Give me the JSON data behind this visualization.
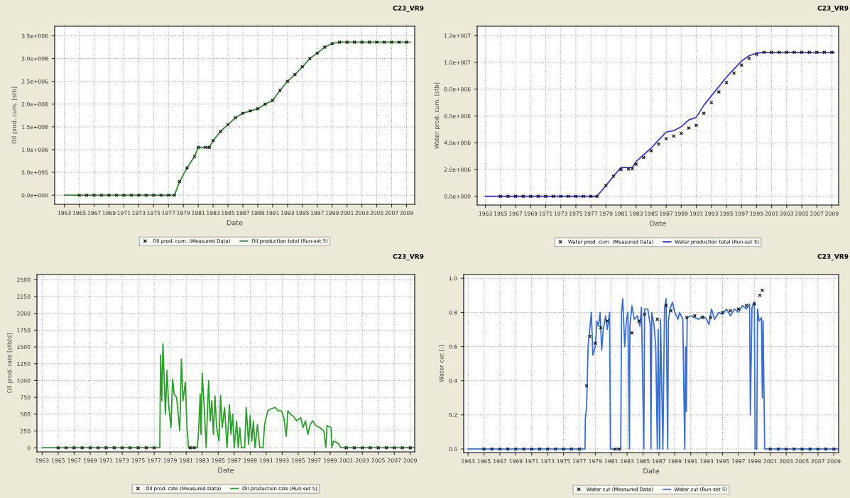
{
  "chart_data": [
    {
      "type": "line",
      "title": "C23_VR9",
      "xlabel": "Date",
      "ylabel": "Oil prod. cum. [stb]",
      "xlim": [
        1961.7,
        2010.1
      ],
      "xticks": [
        1963,
        1965,
        1967,
        1969,
        1971,
        1973,
        1975,
        1977,
        1979,
        1981,
        1983,
        1985,
        1987,
        1989,
        1991,
        1993,
        1995,
        1997,
        1999,
        2001,
        2003,
        2005,
        2007,
        2009
      ],
      "ylim": [
        -200000,
        3710000
      ],
      "yticks": [
        {
          "value": 0,
          "label": "0.0e+000"
        },
        {
          "value": 500000,
          "label": "5.0e+005"
        },
        {
          "value": 1000000,
          "label": "1.0e+006"
        },
        {
          "value": 1500000,
          "label": "1.5e+006"
        },
        {
          "value": 2000000,
          "label": "2.0e+006"
        },
        {
          "value": 2500000,
          "label": "2.5e+006"
        },
        {
          "value": 3000000,
          "label": "3.0e+006"
        },
        {
          "value": 3500000,
          "label": "3.5e+006"
        }
      ],
      "grid": true,
      "legend": "bottom",
      "series": [
        {
          "name": "Oil prod. cum. (Measured Data)",
          "type": "scatter",
          "marker": "cross",
          "color": "#1a1a1a",
          "x": [
            1965,
            1966,
            1967,
            1968,
            1969,
            1970,
            1971,
            1972,
            1973,
            1974,
            1975,
            1976,
            1977,
            1977.8,
            1978.5,
            1979.5,
            1980.5,
            1981,
            1982,
            1982.5,
            1983,
            1984,
            1985,
            1986,
            1987,
            1988,
            1989,
            1990,
            1991,
            1992,
            1993,
            1994,
            1995,
            1996,
            1997,
            1998,
            1999,
            2000,
            2001,
            2002,
            2003,
            2004,
            2005,
            2006,
            2007,
            2008,
            2009
          ],
          "values": [
            0,
            0,
            0,
            0,
            0,
            0,
            0,
            0,
            0,
            0,
            0,
            0,
            0,
            0,
            300000,
            600000,
            850000,
            1050000,
            1050000,
            1050000,
            1200000,
            1400000,
            1550000,
            1700000,
            1800000,
            1850000,
            1900000,
            2000000,
            2080000,
            2300000,
            2500000,
            2650000,
            2820000,
            3000000,
            3120000,
            3250000,
            3330000,
            3360000,
            3360000,
            3360000,
            3360000,
            3360000,
            3360000,
            3360000,
            3360000,
            3360000,
            3360000
          ]
        },
        {
          "name": "Oil production total (Run-set 5)",
          "marker": "none",
          "color": "#2e8b2e",
          "x": [
            1963,
            1977.8,
            1978.5,
            1979.5,
            1980.5,
            1981,
            1982.5,
            1983,
            1984,
            1985,
            1986,
            1987,
            1988,
            1989,
            1990,
            1991,
            1992,
            1993,
            1994,
            1995,
            1996,
            1997,
            1998,
            1999,
            2000,
            2009.5
          ],
          "values": [
            0,
            0,
            300000,
            600000,
            850000,
            1050000,
            1050000,
            1200000,
            1400000,
            1550000,
            1700000,
            1800000,
            1850000,
            1900000,
            2000000,
            2080000,
            2300000,
            2500000,
            2650000,
            2820000,
            3000000,
            3120000,
            3250000,
            3330000,
            3360000,
            3360000
          ]
        }
      ]
    },
    {
      "type": "line",
      "title": "C23_VR9",
      "xlabel": "Date",
      "ylabel": "Water prod. cum. [stb]",
      "xlim": [
        1961.9,
        2009.9
      ],
      "xticks": [
        1963,
        1965,
        1967,
        1969,
        1971,
        1973,
        1975,
        1977,
        1979,
        1981,
        1983,
        1985,
        1987,
        1989,
        1991,
        1993,
        1995,
        1997,
        1999,
        2001,
        2003,
        2005,
        2007,
        2009
      ],
      "ylim": [
        -650000,
        12700000
      ],
      "yticks": [
        {
          "value": 0,
          "label": "0.0e+000"
        },
        {
          "value": 2000000,
          "label": "2.0e+006"
        },
        {
          "value": 4000000,
          "label": "4.0e+006"
        },
        {
          "value": 6000000,
          "label": "6.0e+006"
        },
        {
          "value": 8000000,
          "label": "8.0e+006"
        },
        {
          "value": 10000000,
          "label": "1.0e+007"
        },
        {
          "value": 12000000,
          "label": "1.2e+007"
        }
      ],
      "grid": true,
      "legend": "bottom",
      "series": [
        {
          "name": "Water prod. cum. (Measured Data)",
          "type": "scatter",
          "marker": "cross",
          "color": "#1a1a1a",
          "x": [
            1965,
            1966,
            1967,
            1968,
            1969,
            1970,
            1971,
            1972,
            1973,
            1974,
            1975,
            1976,
            1977,
            1977.8,
            1979,
            1980,
            1981,
            1982,
            1982.5,
            1983,
            1984,
            1985,
            1986,
            1987,
            1988,
            1989,
            1990,
            1991,
            1992,
            1993,
            1994,
            1995,
            1996,
            1997,
            1998,
            1999,
            2000,
            2001,
            2002,
            2003,
            2004,
            2005,
            2006,
            2007,
            2008,
            2009
          ],
          "values": [
            0,
            0,
            0,
            0,
            0,
            0,
            0,
            0,
            0,
            0,
            0,
            0,
            0,
            0,
            800000,
            1500000,
            2000000,
            2030000,
            2050000,
            2400000,
            2900000,
            3400000,
            3900000,
            4300000,
            4500000,
            4700000,
            5100000,
            5300000,
            6200000,
            7000000,
            7800000,
            8500000,
            9200000,
            9800000,
            10300000,
            10600000,
            10750000,
            10750000,
            10750000,
            10750000,
            10750000,
            10750000,
            10750000,
            10750000,
            10750000,
            10750000
          ]
        },
        {
          "name": "Water production total (Run-set 5)",
          "marker": "none",
          "color": "#3a3acc",
          "x": [
            1963,
            1977.8,
            1979,
            1980,
            1981,
            1982.5,
            1983,
            1984,
            1985,
            1986,
            1987,
            1988,
            1989,
            1990,
            1991,
            1992,
            1993,
            1994,
            1995,
            1996,
            1997,
            1998,
            1999,
            2000,
            2009.3
          ],
          "values": [
            0,
            0,
            800000,
            1500000,
            2150000,
            2150000,
            2600000,
            3100000,
            3600000,
            4200000,
            4800000,
            4900000,
            5200000,
            5700000,
            5900000,
            6800000,
            7500000,
            8200000,
            8900000,
            9500000,
            10100000,
            10500000,
            10700000,
            10750000,
            10750000
          ]
        }
      ]
    },
    {
      "type": "line",
      "title": "C23_VR9",
      "xlabel": "Date",
      "ylabel": "Oil prod. rate [stb/d]",
      "xlim": [
        1962.35,
        2009.55
      ],
      "xticks": [
        1963,
        1965,
        1967,
        1969,
        1971,
        1973,
        1975,
        1977,
        1979,
        1981,
        1983,
        1985,
        1987,
        1989,
        1991,
        1993,
        1995,
        1997,
        1999,
        2001,
        2003,
        2005,
        2007,
        2009
      ],
      "ylim": [
        -61,
        2577
      ],
      "yticks": [
        0,
        250,
        500,
        750,
        1000,
        1250,
        1500,
        1750,
        2000,
        2250,
        2500
      ],
      "grid": true,
      "legend": "bottom",
      "series": [
        {
          "name": "Oil prod. rate (Measured Data)",
          "type": "scatter",
          "marker": "cross",
          "color": "#1a1a1a",
          "x": [
            1965,
            1966,
            1967,
            1968,
            1969,
            1970,
            1971,
            1972,
            1973,
            1974,
            1975,
            1976,
            1977,
            1981.5,
            1982,
            2001,
            2002,
            2003,
            2004,
            2005,
            2006,
            2007,
            2008,
            2009
          ],
          "values": [
            0,
            0,
            0,
            0,
            0,
            0,
            0,
            0,
            0,
            0,
            0,
            0,
            0,
            0,
            0,
            0,
            0,
            0,
            0,
            0,
            0,
            0,
            0,
            0
          ]
        },
        {
          "name": "Oil production rate (Run-set 5)",
          "marker": "none",
          "color": "#2aa02a",
          "x": [
            1963,
            1977.7,
            1977.8,
            1977.95,
            1978.1,
            1978.4,
            1978.6,
            1978.8,
            1979.1,
            1979.3,
            1979.5,
            1979.8,
            1980.2,
            1980.4,
            1980.6,
            1980.9,
            1981.1,
            1981.3,
            1982.4,
            1982.55,
            1982.75,
            1982.85,
            1983.0,
            1983.25,
            1983.5,
            1983.8,
            1984.0,
            1984.2,
            1984.4,
            1984.6,
            1984.8,
            1985.1,
            1985.3,
            1985.5,
            1985.8,
            1986.1,
            1986.4,
            1986.6,
            1986.8,
            1987.0,
            1987.3,
            1987.5,
            1987.7,
            1987.9,
            1988.3,
            1988.5,
            1988.8,
            1989.0,
            1989.2,
            1989.4,
            1989.6,
            1989.9,
            1990.2,
            1990.6,
            1990.8,
            1991.2,
            1991.6,
            1992.1,
            1992.5,
            1992.9,
            1993.2,
            1993.5,
            1993.7,
            1994.0,
            1994.4,
            1994.8,
            1995.3,
            1995.6,
            1995.9,
            1996.2,
            1996.5,
            1996.8,
            1997.2,
            1997.7,
            1998.2,
            1998.45,
            1998.6,
            1999.1,
            1999.2,
            1999.4,
            1999.8,
            2000.1,
            2000.3,
            2009.5
          ],
          "values": [
            0,
            0,
            1380,
            700,
            1550,
            500,
            1150,
            650,
            300,
            1020,
            800,
            750,
            250,
            1320,
            700,
            980,
            300,
            0,
            0,
            250,
            800,
            200,
            1110,
            600,
            0,
            1000,
            400,
            700,
            200,
            770,
            300,
            100,
            780,
            300,
            600,
            0,
            640,
            200,
            500,
            0,
            400,
            0,
            300,
            0,
            0,
            600,
            50,
            480,
            100,
            400,
            0,
            350,
            0,
            0,
            350,
            550,
            580,
            600,
            550,
            550,
            450,
            170,
            550,
            500,
            470,
            400,
            450,
            300,
            400,
            200,
            350,
            400,
            330,
            300,
            250,
            0,
            330,
            300,
            0,
            100,
            80,
            50,
            0,
            0
          ]
        }
      ]
    },
    {
      "type": "line",
      "title": "C23_VR9",
      "xlabel": "Date",
      "ylabel": "Water cut [-]",
      "xlim": [
        1962.45,
        2009.6
      ],
      "xticks": [
        1963,
        1965,
        1967,
        1969,
        1971,
        1973,
        1975,
        1977,
        1979,
        1981,
        1983,
        1985,
        1987,
        1989,
        1991,
        1993,
        1995,
        1997,
        1999,
        2001,
        2003,
        2005,
        2007,
        2009
      ],
      "ylim": [
        -0.021,
        1.022
      ],
      "yticks": [
        {
          "value": 0,
          "label": "0.0"
        },
        {
          "value": 0.2,
          "label": "0.2"
        },
        {
          "value": 0.4,
          "label": "0.4"
        },
        {
          "value": 0.6,
          "label": "0.6"
        },
        {
          "value": 0.8,
          "label": "0.8"
        },
        {
          "value": 1,
          "label": "1.0"
        }
      ],
      "grid": true,
      "legend": "bottom",
      "series": [
        {
          "name": "Water cut (Measured Data)",
          "type": "scatter",
          "marker": "cross",
          "color": "#1a1a1a",
          "x": [
            1965,
            1966,
            1967,
            1968,
            1969,
            1970,
            1971,
            1972,
            1973,
            1974,
            1975,
            1976,
            1977,
            1977.9,
            1978.3,
            1979,
            1979.7,
            1980.5,
            1981.5,
            1982,
            1983.6,
            1984.5,
            1985.2,
            1986.8,
            1987.9,
            1988.5,
            1990.5,
            1991.5,
            1992.5,
            1993.5,
            1995,
            1996,
            1997,
            1998,
            1999,
            1999.7,
            2000.0,
            2001,
            2002,
            2003,
            2004,
            2005,
            2006,
            2007,
            2008,
            2009
          ],
          "values": [
            0,
            0,
            0,
            0,
            0,
            0,
            0,
            0,
            0,
            0,
            0,
            0,
            0,
            0.37,
            0.66,
            0.62,
            0.71,
            0.75,
            0,
            0,
            0.68,
            0.75,
            0.79,
            0.76,
            0.84,
            0.81,
            0.77,
            0.78,
            0.77,
            0.77,
            0.8,
            0.81,
            0.82,
            0.84,
            0.85,
            0.9,
            0.93,
            0,
            0,
            0,
            0,
            0,
            0,
            0,
            0,
            0
          ]
        },
        {
          "name": "Water cut (Run-set 5)",
          "marker": "none",
          "color": "#3a6fd0",
          "x": [
            1963,
            1977.7,
            1977.75,
            1977.9,
            1978.1,
            1978.3,
            1978.5,
            1978.7,
            1979.0,
            1979.2,
            1979.4,
            1979.6,
            1979.8,
            1980.0,
            1980.3,
            1980.5,
            1980.8,
            1980.9,
            1982.2,
            1982.3,
            1982.45,
            1982.7,
            1982.9,
            1983.1,
            1983.3,
            1983.35,
            1983.6,
            1983.9,
            1984.3,
            1984.6,
            1984.8,
            1985.1,
            1985.2,
            1985.6,
            1985.9,
            1986.0,
            1986.1,
            1986.4,
            1986.6,
            1986.8,
            1986.9,
            1987.1,
            1987.2,
            1987.5,
            1987.7,
            1987.9,
            1988.1,
            1988.2,
            1988.4,
            1988.7,
            1989.0,
            1989.4,
            1989.6,
            1990.0,
            1990.25,
            1990.35,
            1990.45,
            1990.55,
            1991.0,
            1992.0,
            1992.5,
            1993.0,
            1993.3,
            1993.6,
            1994.0,
            1994.5,
            1995.0,
            1995.5,
            1996.0,
            1996.5,
            1997.0,
            1997.5,
            1998.0,
            1998.4,
            1998.5,
            1998.7,
            1999.0,
            1999.1,
            1999.3,
            1999.4,
            1999.6,
            1999.9,
            2000.0,
            2000.1,
            2000.3,
            2009.5
          ],
          "values": [
            0,
            0,
            0.18,
            0.24,
            0.6,
            0.7,
            0.8,
            0.55,
            0.6,
            0.75,
            0.72,
            0.8,
            0.58,
            0.7,
            0.78,
            0.7,
            0.8,
            0,
            0,
            0.8,
            0.88,
            0.6,
            0.75,
            0.8,
            0,
            0.72,
            0.84,
            0.76,
            0.78,
            0.72,
            0.83,
            0,
            0.82,
            0.82,
            0.73,
            0,
            0.8,
            0.72,
            0.6,
            0,
            0.7,
            0,
            0.76,
            0,
            0.82,
            0.88,
            0,
            0.75,
            0.82,
            0.86,
            0.8,
            0.76,
            0.8,
            0.76,
            0,
            0.6,
            0.22,
            0.77,
            0.78,
            0.76,
            0.78,
            0.76,
            0.73,
            0.82,
            0.76,
            0.8,
            0.79,
            0.82,
            0.78,
            0.82,
            0.8,
            0.84,
            0.82,
            0.85,
            0.2,
            0.83,
            0.86,
            0,
            0,
            0.82,
            0.75,
            0.77,
            0.3,
            0.75,
            0,
            0
          ]
        }
      ]
    }
  ]
}
